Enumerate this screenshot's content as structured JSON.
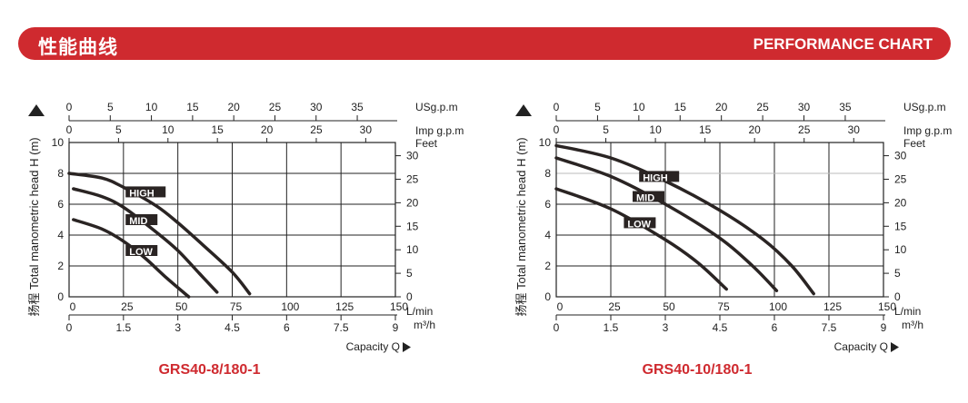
{
  "header": {
    "title_cn": "性能曲线",
    "title_en": "PERFORMANCE CHART",
    "color": "#cf2a2f"
  },
  "chart_data": [
    {
      "type": "line",
      "title": "GRS40-8/180-1",
      "ylabel": "扬程 Total manometric head H (m)",
      "xlabel": "Capacity Q",
      "x_unit": "L/min",
      "x2_unit": "m³/h",
      "top_unit": "USg.p.m",
      "top2_unit": "Imp g.p.m",
      "right_unit": "Feet",
      "xlim": [
        0,
        150
      ],
      "ylim": [
        0,
        10
      ],
      "x_ticks": [
        0,
        25,
        50,
        75,
        100,
        125,
        150
      ],
      "y_ticks": [
        0,
        2,
        4,
        6,
        8,
        10
      ],
      "m3h_ticks": [
        "0",
        "1.5",
        "3",
        "4.5",
        "6",
        "7.5",
        "9"
      ],
      "usgpm_ticks": [
        0,
        5,
        10,
        15,
        20,
        25,
        30,
        35
      ],
      "impgpm_ticks": [
        0,
        5,
        10,
        15,
        20,
        25,
        30
      ],
      "feet_ticks": [
        0,
        5,
        10,
        15,
        20,
        25,
        30
      ],
      "grid": true,
      "series": [
        {
          "name": "HIGH",
          "points": [
            [
              0,
              8.0
            ],
            [
              15,
              7.7
            ],
            [
              25,
              7.1
            ],
            [
              40,
              5.9
            ],
            [
              50,
              4.8
            ],
            [
              62,
              3.3
            ],
            [
              75,
              1.6
            ],
            [
              83,
              0.2
            ]
          ],
          "label_at": [
            26,
            6.8
          ]
        },
        {
          "name": "MID",
          "points": [
            [
              2,
              7.0
            ],
            [
              15,
              6.5
            ],
            [
              25,
              5.8
            ],
            [
              40,
              4.2
            ],
            [
              50,
              3.0
            ],
            [
              60,
              1.5
            ],
            [
              68,
              0.3
            ]
          ],
          "label_at": [
            26,
            5.0
          ]
        },
        {
          "name": "LOW",
          "points": [
            [
              2,
              5.0
            ],
            [
              15,
              4.4
            ],
            [
              25,
              3.6
            ],
            [
              35,
              2.5
            ],
            [
              45,
              1.2
            ],
            [
              55,
              0.0
            ]
          ],
          "label_at": [
            26,
            3.0
          ]
        }
      ]
    },
    {
      "type": "line",
      "title": "GRS40-10/180-1",
      "ylabel": "扬程 Total manometric head H (m)",
      "xlabel": "Capacity Q",
      "x_unit": "L/min",
      "x2_unit": "m³/h",
      "top_unit": "USg.p.m",
      "top2_unit": "Imp g.p.m",
      "right_unit": "Feet",
      "xlim": [
        0,
        150
      ],
      "ylim": [
        0,
        10
      ],
      "x_ticks": [
        0,
        25,
        50,
        75,
        100,
        125,
        150
      ],
      "y_ticks": [
        0,
        2,
        4,
        6,
        8,
        10
      ],
      "m3h_ticks": [
        "0",
        "1.5",
        "3",
        "4.5",
        "6",
        "7.5",
        "9"
      ],
      "usgpm_ticks": [
        0,
        5,
        10,
        15,
        20,
        25,
        30,
        35
      ],
      "impgpm_ticks": [
        0,
        5,
        10,
        15,
        20,
        25,
        30
      ],
      "feet_ticks": [
        0,
        5,
        10,
        15,
        20,
        25,
        30
      ],
      "grid": true,
      "series": [
        {
          "name": "HIGH",
          "points": [
            [
              0,
              9.8
            ],
            [
              25,
              9.0
            ],
            [
              50,
              7.5
            ],
            [
              75,
              5.6
            ],
            [
              95,
              3.7
            ],
            [
              108,
              2.0
            ],
            [
              118,
              0.2
            ]
          ],
          "label_at": [
            38,
            7.8
          ]
        },
        {
          "name": "MID",
          "points": [
            [
              0,
              9.0
            ],
            [
              25,
              7.8
            ],
            [
              50,
              6.0
            ],
            [
              75,
              3.8
            ],
            [
              90,
              2.0
            ],
            [
              101,
              0.4
            ]
          ],
          "label_at": [
            35,
            6.5
          ]
        },
        {
          "name": "LOW",
          "points": [
            [
              0,
              7.0
            ],
            [
              25,
              5.7
            ],
            [
              50,
              3.7
            ],
            [
              65,
              2.2
            ],
            [
              78,
              0.5
            ]
          ],
          "label_at": [
            31,
            4.8
          ]
        }
      ]
    }
  ]
}
